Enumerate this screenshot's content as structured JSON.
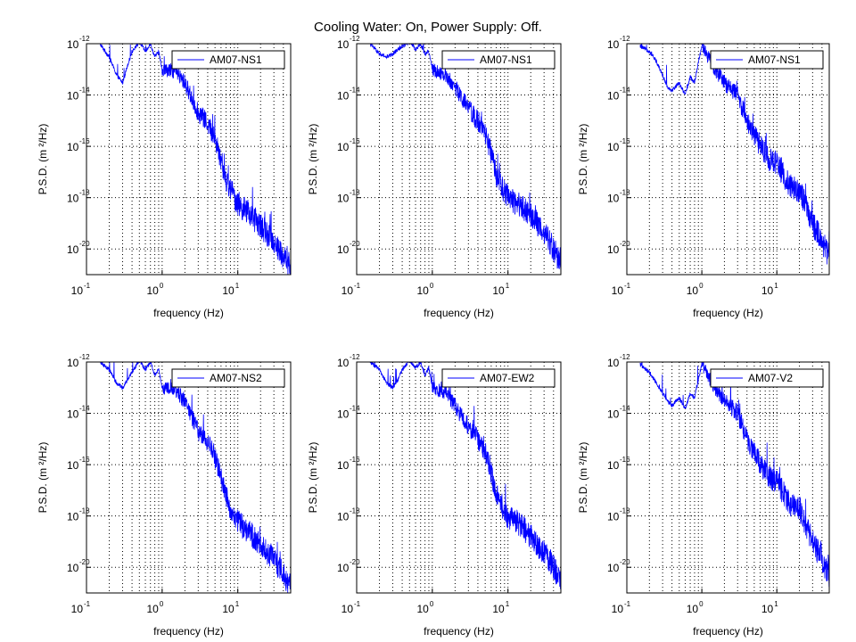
{
  "figure": {
    "title": "Cooling Water: On, Power Supply: Off."
  },
  "style": {
    "line_color": "#0000ff",
    "axis_color": "#000000",
    "grid_color": "#000000",
    "background": "#ffffff"
  },
  "chart_data": [
    {
      "type": "line",
      "legend": "AM07-NS1",
      "legend_placement": "top-right",
      "xlabel": "frequency (Hz)",
      "ylabel": "P.S.D. (m ²/Hz)",
      "x_scale": "log",
      "y_scale": "log",
      "xlim": [
        0.1,
        50
      ],
      "ylim": [
        1e-21,
        1e-12
      ],
      "x_ticks": [
        0.1,
        1,
        10
      ],
      "y_ticks": [
        1e-20,
        1e-18,
        1e-16,
        1e-14,
        1e-12
      ],
      "grid": true,
      "series": [
        {
          "name": "AM07-NS1",
          "x": [
            0.15,
            0.2,
            0.25,
            0.3,
            0.35,
            0.4,
            0.5,
            0.6,
            0.7,
            0.8,
            0.9,
            1,
            1.5,
            2,
            3,
            4,
            5,
            6,
            7,
            8,
            10,
            15,
            20,
            30,
            40,
            50
          ],
          "y": [
            1e-12,
            3e-13,
            6e-14,
            3e-14,
            1.5e-13,
            5e-13,
            1.2e-12,
            5e-13,
            1e-12,
            3e-13,
            5e-13,
            1e-13,
            8e-14,
            3e-14,
            2e-15,
            8e-16,
            2e-16,
            3e-17,
            5e-18,
            2e-18,
            6e-19,
            2e-19,
            8e-20,
            2e-20,
            5e-21,
            2e-21
          ]
        }
      ]
    },
    {
      "type": "line",
      "legend": "AM07-NS1",
      "legend_placement": "top-right",
      "xlabel": "frequency (Hz)",
      "ylabel": "P.S.D. (m ²/Hz)",
      "x_scale": "log",
      "y_scale": "log",
      "xlim": [
        0.1,
        50
      ],
      "ylim": [
        1e-21,
        1e-12
      ],
      "x_ticks": [
        0.1,
        1,
        10
      ],
      "y_ticks": [
        1e-20,
        1e-18,
        1e-16,
        1e-14,
        1e-12
      ],
      "grid": true,
      "series": [
        {
          "name": "AM07-NS1",
          "x": [
            0.15,
            0.2,
            0.25,
            0.3,
            0.35,
            0.4,
            0.5,
            0.6,
            0.7,
            0.8,
            0.9,
            1,
            1.5,
            2,
            3,
            4,
            5,
            6,
            7,
            8,
            10,
            15,
            20,
            30,
            40,
            50
          ],
          "y": [
            1e-12,
            4e-13,
            3e-13,
            4e-13,
            6e-13,
            8e-13,
            1.2e-12,
            6e-13,
            1e-12,
            4e-13,
            5e-13,
            1e-13,
            6e-14,
            2e-14,
            3e-15,
            1e-15,
            3e-16,
            5e-17,
            8e-18,
            3e-18,
            1e-18,
            5e-19,
            2e-19,
            5e-20,
            1e-20,
            3e-21
          ]
        }
      ]
    },
    {
      "type": "line",
      "legend": "AM07-NS1",
      "legend_placement": "top-right",
      "xlabel": "frequency (Hz)",
      "ylabel": "P.S.D. (m ²/Hz)",
      "x_scale": "log",
      "y_scale": "log",
      "xlim": [
        0.1,
        50
      ],
      "ylim": [
        1e-21,
        1e-12
      ],
      "x_ticks": [
        0.1,
        1,
        10
      ],
      "y_ticks": [
        1e-20,
        1e-18,
        1e-16,
        1e-14,
        1e-12
      ],
      "grid": true,
      "series": [
        {
          "name": "AM07-NS1",
          "x": [
            0.15,
            0.2,
            0.25,
            0.3,
            0.35,
            0.4,
            0.5,
            0.6,
            0.7,
            0.8,
            0.9,
            1,
            1.5,
            2,
            3,
            4,
            5,
            6,
            7,
            8,
            10,
            15,
            20,
            30,
            40,
            50
          ],
          "y": [
            8e-13,
            5e-13,
            2e-13,
            6e-14,
            2e-14,
            1.5e-14,
            3e-14,
            1e-14,
            5e-14,
            3e-14,
            2e-13,
            8e-13,
            1e-13,
            3e-14,
            1e-14,
            1e-15,
            3e-16,
            1e-16,
            6e-17,
            3e-17,
            2e-17,
            3e-18,
            2e-18,
            1e-19,
            2e-20,
            5e-21
          ]
        }
      ]
    },
    {
      "type": "line",
      "legend": "AM07-NS2",
      "legend_placement": "top-right",
      "xlabel": "frequency (Hz)",
      "ylabel": "P.S.D. (m ²/Hz)",
      "x_scale": "log",
      "y_scale": "log",
      "xlim": [
        0.1,
        50
      ],
      "ylim": [
        1e-21,
        1e-12
      ],
      "x_ticks": [
        0.1,
        1,
        10
      ],
      "y_ticks": [
        1e-20,
        1e-18,
        1e-16,
        1e-14,
        1e-12
      ],
      "grid": true,
      "series": [
        {
          "name": "AM07-NS2",
          "x": [
            0.15,
            0.2,
            0.25,
            0.3,
            0.35,
            0.4,
            0.5,
            0.6,
            0.7,
            0.8,
            0.9,
            1,
            1.5,
            2,
            3,
            4,
            5,
            6,
            7,
            8,
            10,
            15,
            20,
            30,
            40,
            50
          ],
          "y": [
            1e-12,
            5e-13,
            1.5e-13,
            1e-13,
            2e-13,
            4e-13,
            1.2e-12,
            5e-13,
            1e-12,
            3e-13,
            5e-13,
            1e-13,
            8e-14,
            3e-14,
            2e-15,
            8e-16,
            2e-16,
            3e-17,
            6e-18,
            2e-18,
            6e-19,
            2e-19,
            8e-20,
            2e-20,
            5e-21,
            2e-21
          ]
        }
      ]
    },
    {
      "type": "line",
      "legend": "AM07-EW2",
      "legend_placement": "top-right",
      "xlabel": "frequency (Hz)",
      "ylabel": "P.S.D. (m ²/Hz)",
      "x_scale": "log",
      "y_scale": "log",
      "xlim": [
        0.1,
        50
      ],
      "ylim": [
        1e-21,
        1e-12
      ],
      "x_ticks": [
        0.1,
        1,
        10
      ],
      "y_ticks": [
        1e-20,
        1e-18,
        1e-16,
        1e-14,
        1e-12
      ],
      "grid": true,
      "series": [
        {
          "name": "AM07-EW2",
          "x": [
            0.15,
            0.2,
            0.25,
            0.3,
            0.35,
            0.4,
            0.5,
            0.6,
            0.7,
            0.8,
            0.9,
            1,
            1.5,
            2,
            3,
            4,
            5,
            6,
            7,
            8,
            10,
            15,
            20,
            30,
            40,
            50
          ],
          "y": [
            1e-12,
            5e-13,
            1.5e-13,
            1e-13,
            2e-13,
            5e-13,
            1.2e-12,
            6e-13,
            1e-12,
            3e-13,
            6e-13,
            1e-13,
            6e-14,
            2e-14,
            3e-15,
            1e-15,
            3e-16,
            5e-17,
            8e-18,
            3e-18,
            1e-18,
            4e-19,
            1.5e-19,
            4e-20,
            1e-20,
            3e-21
          ]
        }
      ]
    },
    {
      "type": "line",
      "legend": "AM07-V2",
      "legend_placement": "top-right",
      "xlabel": "frequency (Hz)",
      "ylabel": "P.S.D. (m ²/Hz)",
      "x_scale": "log",
      "y_scale": "log",
      "xlim": [
        0.1,
        50
      ],
      "ylim": [
        1e-21,
        1e-12
      ],
      "x_ticks": [
        0.1,
        1,
        10
      ],
      "y_ticks": [
        1e-20,
        1e-18,
        1e-16,
        1e-14,
        1e-12
      ],
      "grid": true,
      "series": [
        {
          "name": "AM07-V2",
          "x": [
            0.15,
            0.2,
            0.25,
            0.3,
            0.35,
            0.4,
            0.5,
            0.6,
            0.7,
            0.8,
            0.9,
            1,
            1.5,
            2,
            3,
            4,
            5,
            6,
            7,
            8,
            10,
            15,
            20,
            30,
            40,
            50
          ],
          "y": [
            8e-13,
            4e-13,
            1.5e-13,
            6e-14,
            3e-14,
            2e-14,
            4e-14,
            1.5e-14,
            6e-14,
            4e-14,
            2e-13,
            8e-13,
            1e-13,
            3e-14,
            1e-14,
            1e-15,
            3e-16,
            1e-16,
            6e-17,
            3e-17,
            2e-17,
            3e-18,
            2e-18,
            1e-19,
            2e-20,
            5e-21
          ]
        }
      ]
    }
  ]
}
